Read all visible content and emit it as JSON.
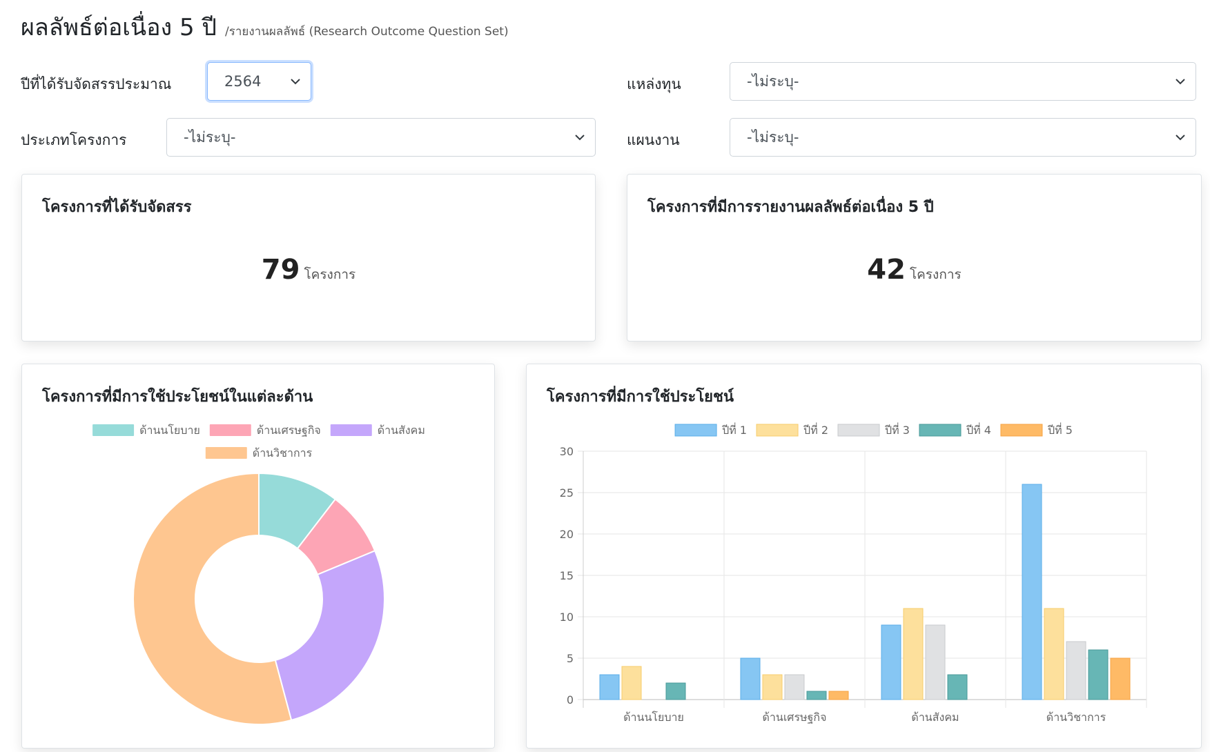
{
  "header": {
    "title": "ผลลัพธ์ต่อเนื่อง 5 ปี",
    "subtitle": "/รายงานผลลัพธ์ (Research Outcome Question Set)"
  },
  "filters": {
    "year_label": "ปีที่ได้รับจัดสรรประมาณ",
    "year_value": "2564",
    "fund_label": "แหล่งทุน",
    "fund_value": "-ไม่ระบุ-",
    "type_label": "ประเภทโครงการ",
    "type_value": "-ไม่ระบุ-",
    "plan_label": "แผนงาน",
    "plan_value": "-ไม่ระบุ-"
  },
  "stats": {
    "allocated": {
      "title": "โครงการที่ได้รับจัดสรร",
      "value": "79",
      "unit": "โครงการ"
    },
    "reported": {
      "title": "โครงการที่มีการรายงานผลลัพธ์ต่อเนื่อง 5 ปี",
      "value": "42",
      "unit": "โครงการ"
    }
  },
  "colors": {
    "policy": "#96dbd9",
    "economic": "#fda5b5",
    "social": "#c4a6fb",
    "academic": "#fec690",
    "year1": "#86c6f3",
    "year2": "#fde09c",
    "year3": "#e0e1e3",
    "year4": "#67b6b5",
    "year5": "#feba66"
  },
  "chart_data": [
    {
      "type": "pie",
      "title": "โครงการที่มีการใช้ประโยชน์ในแต่ละด้าน",
      "categories": [
        "ด้านนโยบาย",
        "ด้านเศรษฐกิจ",
        "ด้านสังคม",
        "ด้านวิชาการ"
      ],
      "values": [
        5,
        4,
        13,
        26
      ],
      "legend": "top"
    },
    {
      "type": "bar",
      "title": "โครงการที่มีการใช้ประโยชน์",
      "categories": [
        "ด้านนโยบาย",
        "ด้านเศรษฐกิจ",
        "ด้านสังคม",
        "ด้านวิชาการ"
      ],
      "series": [
        {
          "name": "ปีที่ 1",
          "values": [
            3,
            5,
            9,
            26
          ]
        },
        {
          "name": "ปีที่ 2",
          "values": [
            4,
            3,
            11,
            11
          ]
        },
        {
          "name": "ปีที่ 3",
          "values": [
            0,
            3,
            9,
            7
          ]
        },
        {
          "name": "ปีที่ 4",
          "values": [
            2,
            1,
            3,
            6
          ]
        },
        {
          "name": "ปีที่ 5",
          "values": [
            0,
            1,
            0,
            5
          ]
        }
      ],
      "ylim": [
        0,
        30
      ],
      "yticks": [
        0,
        5,
        10,
        15,
        20,
        25,
        30
      ],
      "grid": true,
      "legend": "top"
    }
  ]
}
